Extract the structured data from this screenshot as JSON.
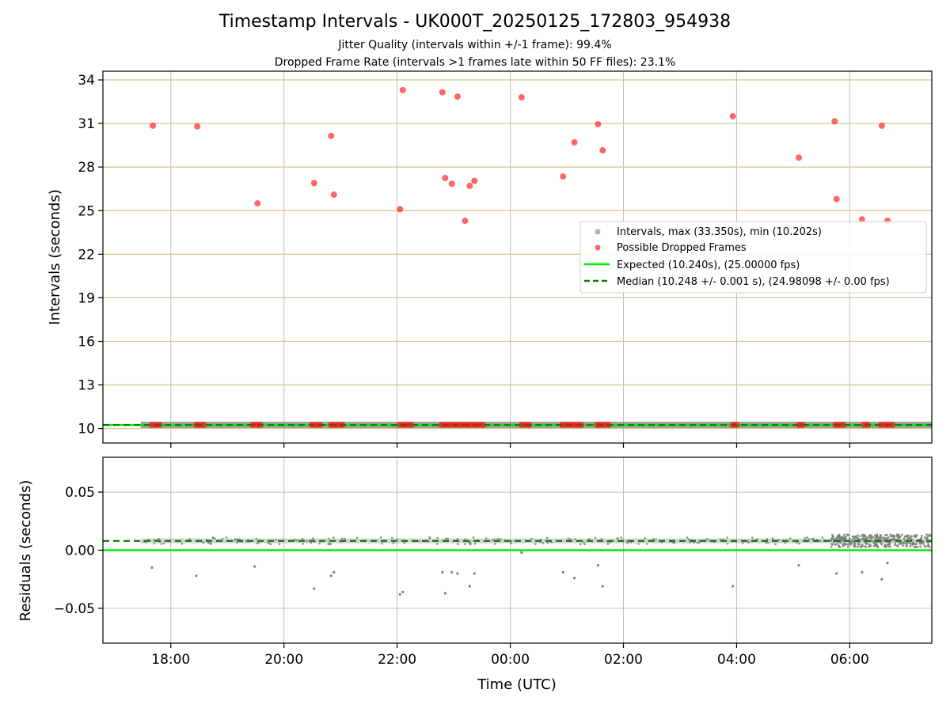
{
  "chart_data": [
    {
      "type": "scatter",
      "title": "Timestamp Intervals - UK000T_20250125_172803_954938",
      "subtitle_lines": [
        "Jitter Quality (intervals within +/-1 frame): 99.4%",
        "Dropped Frame Rate (intervals >1 frames late within 50 FF files): 23.1%"
      ],
      "xlabel": "",
      "ylabel": "Intervals (seconds)",
      "x_axis_type": "time",
      "xlim": [
        "2025-01-25 16:48",
        "2025-01-26 07:27"
      ],
      "x_ticks": [
        "18:00",
        "20:00",
        "22:00",
        "00:00",
        "02:00",
        "04:00",
        "06:00"
      ],
      "ylim": [
        9.0,
        34.6
      ],
      "y_ticks": [
        "10",
        "13",
        "16",
        "19",
        "22",
        "25",
        "28",
        "31",
        "34"
      ],
      "y_grid_color": "#d4c88c",
      "x_grid": true,
      "legend_position": "center-right",
      "series": [
        {
          "name": "Intervals, max (33.350s), min (10.202s)",
          "color": "#808080",
          "kind": "dense band near expected value",
          "x_range": [
            "2025-01-25 17:28",
            "2025-01-26 07:27"
          ],
          "y_value": 10.248
        },
        {
          "name": "Possible Dropped Frames",
          "color": "#ff0000",
          "points": [
            {
              "x": "2025-01-25 17:41",
              "y": 30.85
            },
            {
              "x": "2025-01-25 18:28",
              "y": 30.8
            },
            {
              "x": "2025-01-25 19:32",
              "y": 25.5
            },
            {
              "x": "2025-01-25 20:32",
              "y": 26.9
            },
            {
              "x": "2025-01-25 20:50",
              "y": 30.15
            },
            {
              "x": "2025-01-25 20:53",
              "y": 26.1
            },
            {
              "x": "2025-01-25 22:03",
              "y": 25.1
            },
            {
              "x": "2025-01-25 22:06",
              "y": 33.3
            },
            {
              "x": "2025-01-25 22:48",
              "y": 33.15
            },
            {
              "x": "2025-01-25 22:51",
              "y": 27.25
            },
            {
              "x": "2025-01-25 22:58",
              "y": 26.85
            },
            {
              "x": "2025-01-25 23:04",
              "y": 32.85
            },
            {
              "x": "2025-01-25 23:12",
              "y": 24.3
            },
            {
              "x": "2025-01-25 23:17",
              "y": 26.7
            },
            {
              "x": "2025-01-25 23:22",
              "y": 27.05
            },
            {
              "x": "2025-01-26 00:12",
              "y": 32.8
            },
            {
              "x": "2025-01-26 00:56",
              "y": 27.35
            },
            {
              "x": "2025-01-26 01:08",
              "y": 29.7
            },
            {
              "x": "2025-01-26 01:33",
              "y": 30.95
            },
            {
              "x": "2025-01-26 01:38",
              "y": 29.15
            },
            {
              "x": "2025-01-26 03:56",
              "y": 31.5
            },
            {
              "x": "2025-01-26 05:06",
              "y": 28.65
            },
            {
              "x": "2025-01-26 05:44",
              "y": 31.15
            },
            {
              "x": "2025-01-26 05:46",
              "y": 25.8
            },
            {
              "x": "2025-01-26 06:13",
              "y": 24.4
            },
            {
              "x": "2025-01-26 06:34",
              "y": 30.85
            },
            {
              "x": "2025-01-26 06:40",
              "y": 24.3
            },
            {
              "x": "2025-01-25 17:40",
              "y": 10.25
            },
            {
              "x": "2025-01-25 17:44",
              "y": 10.25
            },
            {
              "x": "2025-01-25 17:48",
              "y": 10.25
            },
            {
              "x": "2025-01-25 18:27",
              "y": 10.25
            },
            {
              "x": "2025-01-25 18:31",
              "y": 10.25
            },
            {
              "x": "2025-01-25 18:35",
              "y": 10.25
            },
            {
              "x": "2025-01-25 19:27",
              "y": 10.25
            },
            {
              "x": "2025-01-25 19:31",
              "y": 10.25
            },
            {
              "x": "2025-01-25 19:35",
              "y": 10.25
            },
            {
              "x": "2025-01-25 20:30",
              "y": 10.25
            },
            {
              "x": "2025-01-25 20:34",
              "y": 10.25
            },
            {
              "x": "2025-01-25 20:38",
              "y": 10.25
            },
            {
              "x": "2025-01-25 20:50",
              "y": 10.25
            },
            {
              "x": "2025-01-25 20:54",
              "y": 10.25
            },
            {
              "x": "2025-01-25 20:58",
              "y": 10.25
            },
            {
              "x": "2025-01-25 21:02",
              "y": 10.25
            },
            {
              "x": "2025-01-25 22:03",
              "y": 10.25
            },
            {
              "x": "2025-01-25 22:07",
              "y": 10.25
            },
            {
              "x": "2025-01-25 22:11",
              "y": 10.25
            },
            {
              "x": "2025-01-25 22:15",
              "y": 10.25
            },
            {
              "x": "2025-01-25 22:47",
              "y": 10.25
            },
            {
              "x": "2025-01-25 22:51",
              "y": 10.25
            },
            {
              "x": "2025-01-25 22:55",
              "y": 10.25
            },
            {
              "x": "2025-01-25 22:59",
              "y": 10.25
            },
            {
              "x": "2025-01-25 23:03",
              "y": 10.25
            },
            {
              "x": "2025-01-25 23:07",
              "y": 10.25
            },
            {
              "x": "2025-01-25 23:11",
              "y": 10.25
            },
            {
              "x": "2025-01-25 23:15",
              "y": 10.25
            },
            {
              "x": "2025-01-25 23:19",
              "y": 10.25
            },
            {
              "x": "2025-01-25 23:23",
              "y": 10.25
            },
            {
              "x": "2025-01-25 23:27",
              "y": 10.25
            },
            {
              "x": "2025-01-25 23:31",
              "y": 10.25
            },
            {
              "x": "2025-01-26 00:12",
              "y": 10.25
            },
            {
              "x": "2025-01-26 00:16",
              "y": 10.25
            },
            {
              "x": "2025-01-26 00:20",
              "y": 10.25
            },
            {
              "x": "2025-01-26 00:55",
              "y": 10.25
            },
            {
              "x": "2025-01-26 00:59",
              "y": 10.25
            },
            {
              "x": "2025-01-26 01:03",
              "y": 10.25
            },
            {
              "x": "2025-01-26 01:07",
              "y": 10.25
            },
            {
              "x": "2025-01-26 01:11",
              "y": 10.25
            },
            {
              "x": "2025-01-26 01:15",
              "y": 10.25
            },
            {
              "x": "2025-01-26 01:32",
              "y": 10.25
            },
            {
              "x": "2025-01-26 01:36",
              "y": 10.25
            },
            {
              "x": "2025-01-26 01:40",
              "y": 10.25
            },
            {
              "x": "2025-01-26 01:44",
              "y": 10.25
            },
            {
              "x": "2025-01-26 03:56",
              "y": 10.25
            },
            {
              "x": "2025-01-26 04:00",
              "y": 10.25
            },
            {
              "x": "2025-01-26 05:06",
              "y": 10.25
            },
            {
              "x": "2025-01-26 05:10",
              "y": 10.25
            },
            {
              "x": "2025-01-26 05:45",
              "y": 10.25
            },
            {
              "x": "2025-01-26 05:49",
              "y": 10.25
            },
            {
              "x": "2025-01-26 05:53",
              "y": 10.25
            },
            {
              "x": "2025-01-26 06:15",
              "y": 10.25
            },
            {
              "x": "2025-01-26 06:19",
              "y": 10.25
            },
            {
              "x": "2025-01-26 06:33",
              "y": 10.25
            },
            {
              "x": "2025-01-26 06:37",
              "y": 10.25
            },
            {
              "x": "2025-01-26 06:41",
              "y": 10.25
            },
            {
              "x": "2025-01-26 06:45",
              "y": 10.25
            }
          ]
        },
        {
          "name": "Expected (10.240s), (25.00000 fps)",
          "color": "#00ee00",
          "kind": "horizontal line",
          "y_value": 10.24
        },
        {
          "name": "Median (10.248 +/- 0.001 s), (24.98098 +/- 0.00 fps)",
          "color": "#008000",
          "kind": "dashed horizontal line",
          "y_value": 10.248
        }
      ]
    },
    {
      "type": "scatter",
      "title": "",
      "xlabel": "Time (UTC)",
      "ylabel": "Residuals (seconds)",
      "x_axis_type": "time",
      "xlim": [
        "2025-01-25 16:48",
        "2025-01-26 07:27"
      ],
      "x_ticks": [
        "18:00",
        "20:00",
        "22:00",
        "00:00",
        "02:00",
        "04:00",
        "06:00"
      ],
      "ylim": [
        -0.08,
        0.08
      ],
      "y_ticks": [
        "0.05",
        "0.00",
        "−0.05"
      ],
      "x_grid": true,
      "y_grid": true,
      "series": [
        {
          "name": "",
          "color": "#808080",
          "kind": "dense band",
          "x_range": [
            "2025-01-25 17:28",
            "2025-01-26 07:27"
          ],
          "y_value": 0.008,
          "points": [
            {
              "x": "2025-01-25 17:40",
              "y": -0.015
            },
            {
              "x": "2025-01-25 18:27",
              "y": -0.022
            },
            {
              "x": "2025-01-25 19:29",
              "y": -0.014
            },
            {
              "x": "2025-01-25 20:32",
              "y": -0.033
            },
            {
              "x": "2025-01-25 20:50",
              "y": -0.022
            },
            {
              "x": "2025-01-25 20:53",
              "y": -0.019
            },
            {
              "x": "2025-01-25 22:03",
              "y": -0.038
            },
            {
              "x": "2025-01-25 22:06",
              "y": -0.036
            },
            {
              "x": "2025-01-25 22:48",
              "y": -0.019
            },
            {
              "x": "2025-01-25 22:51",
              "y": -0.037
            },
            {
              "x": "2025-01-25 22:58",
              "y": -0.019
            },
            {
              "x": "2025-01-25 23:04",
              "y": -0.02
            },
            {
              "x": "2025-01-25 23:17",
              "y": -0.031
            },
            {
              "x": "2025-01-25 23:22",
              "y": -0.02
            },
            {
              "x": "2025-01-26 00:12",
              "y": -0.002
            },
            {
              "x": "2025-01-26 00:56",
              "y": -0.019
            },
            {
              "x": "2025-01-26 01:08",
              "y": -0.024
            },
            {
              "x": "2025-01-26 01:33",
              "y": -0.013
            },
            {
              "x": "2025-01-26 01:38",
              "y": -0.031
            },
            {
              "x": "2025-01-26 03:56",
              "y": -0.031
            },
            {
              "x": "2025-01-26 05:06",
              "y": -0.013
            },
            {
              "x": "2025-01-26 05:46",
              "y": -0.02
            },
            {
              "x": "2025-01-26 06:13",
              "y": -0.019
            },
            {
              "x": "2025-01-26 06:34",
              "y": -0.025
            },
            {
              "x": "2025-01-26 06:40",
              "y": -0.011
            }
          ]
        },
        {
          "name": "",
          "color": "#00ee00",
          "kind": "horizontal line",
          "y_value": 0.0
        },
        {
          "name": "",
          "color": "#008000",
          "kind": "dashed horizontal line",
          "y_value": 0.008
        }
      ]
    }
  ]
}
